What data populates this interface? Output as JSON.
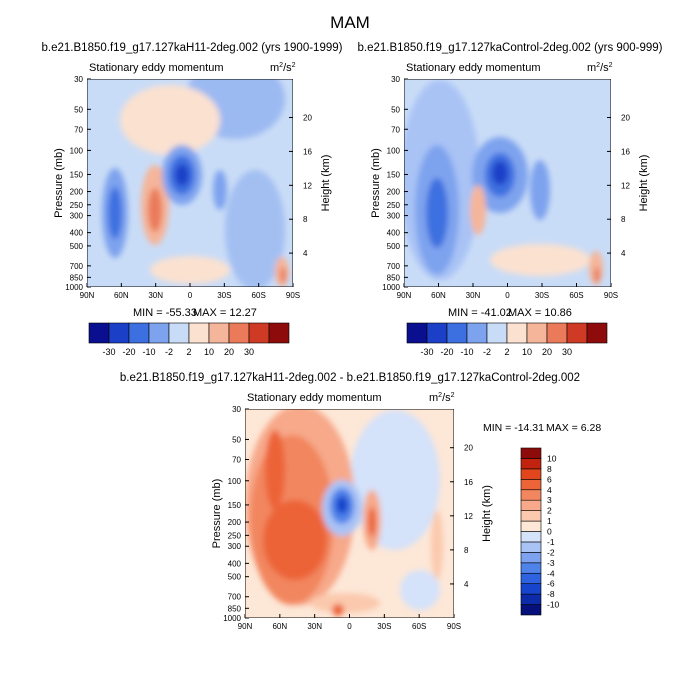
{
  "figure": {
    "title": "MAM"
  },
  "colors": {
    "contour_levels": [
      -30,
      -20,
      -10,
      -2,
      2,
      10,
      20,
      30
    ],
    "top_palette": [
      "#0a0f8f",
      "#1b3fc7",
      "#3c6fe0",
      "#7ea3ee",
      "#c9dcf7",
      "#fbe1d0",
      "#f5b59a",
      "#ea7a5a",
      "#cf3a25",
      "#8e0b0b"
    ],
    "diff_levels": [
      -10,
      -8,
      -6,
      -4,
      -3,
      -2,
      -1,
      0,
      1,
      2,
      3,
      4,
      6,
      8,
      10
    ],
    "diff_palette": [
      "#05107a",
      "#0d2ba8",
      "#1744cc",
      "#2f62e0",
      "#5083ea",
      "#7da3f0",
      "#a9c3f5",
      "#d4e2fa",
      "#fde7d7",
      "#fbc9ad",
      "#f7a98a",
      "#f2865f",
      "#ec6438",
      "#e2461c",
      "#c1230e",
      "#8e0b0b"
    ]
  },
  "chart_data": [
    {
      "type": "heatmap",
      "title": "b.e21.B1850.f19_g17.127kaH11-2deg.002 (yrs 1900-1999)",
      "subtitle_left": "Stationary eddy momentum",
      "units": "m",
      "units_exp": "2",
      "units_tail": "/s",
      "units_tail_exp": "2",
      "ylabel": "Pressure (mb)",
      "ylabel_right": "Height (km)",
      "x_ticks": [
        "90N",
        "60N",
        "30N",
        "0",
        "30S",
        "60S",
        "90S"
      ],
      "y_ticks": [
        "30",
        "50",
        "70",
        "100",
        "150",
        "200",
        "250",
        "300",
        "400",
        "500",
        "700",
        "850",
        "1000"
      ],
      "height_ticks": [
        "20",
        "16",
        "12",
        "8",
        "4"
      ],
      "min_label": "MIN = -55.33",
      "max_label": "MAX =  12.27",
      "features": [
        {
          "lat": 10,
          "p": 150,
          "value": -40
        },
        {
          "lat": -42,
          "p": 60,
          "value": -8
        },
        {
          "lat": 68,
          "p": 230,
          "value": -12
        },
        {
          "lat": -22,
          "p": 170,
          "value": -6
        },
        {
          "lat": 25,
          "p": 280,
          "value": 12
        },
        {
          "lat": -80,
          "p": 850,
          "value": 10
        }
      ]
    },
    {
      "type": "heatmap",
      "title": "b.e21.B1850.f19_g17.127kaControl-2deg.002 (yrs 900-999)",
      "subtitle_left": "Stationary eddy momentum",
      "units": "m",
      "units_exp": "2",
      "units_tail": "/s",
      "units_tail_exp": "2",
      "ylabel": "Pressure (mb)",
      "ylabel_right": "Height (km)",
      "x_ticks": [
        "90N",
        "60N",
        "30N",
        "0",
        "30S",
        "60S",
        "90S"
      ],
      "y_ticks": [
        "30",
        "50",
        "70",
        "100",
        "150",
        "200",
        "250",
        "300",
        "400",
        "500",
        "700",
        "850",
        "1000"
      ],
      "height_ticks": [
        "20",
        "16",
        "12",
        "8",
        "4"
      ],
      "min_label": "MIN = -41.02",
      "max_label": "MAX =  10.86",
      "features": [
        {
          "lat": 10,
          "p": 150,
          "value": -38
        },
        {
          "lat": 65,
          "p": 220,
          "value": -18
        },
        {
          "lat": -25,
          "p": 180,
          "value": -10
        },
        {
          "lat": 27,
          "p": 280,
          "value": 8
        },
        {
          "lat": -82,
          "p": 850,
          "value": 9
        }
      ]
    },
    {
      "type": "heatmap",
      "title": "b.e21.B1850.f19_g17.127kaH11-2deg.002 - b.e21.B1850.f19_g17.127kaControl-2deg.002",
      "subtitle_left": "Stationary eddy momentum",
      "units": "m",
      "units_exp": "2",
      "units_tail": "/s",
      "units_tail_exp": "2",
      "ylabel": "Pressure (mb)",
      "ylabel_right": "Height (km)",
      "x_ticks": [
        "90N",
        "60N",
        "30N",
        "0",
        "30S",
        "60S",
        "90S"
      ],
      "y_ticks": [
        "30",
        "50",
        "70",
        "100",
        "150",
        "200",
        "250",
        "300",
        "400",
        "500",
        "700",
        "850",
        "1000"
      ],
      "height_ticks": [
        "20",
        "16",
        "12",
        "8",
        "4"
      ],
      "min_label": "MIN = -14.31",
      "max_label": "MAX =   6.28",
      "features": [
        {
          "lat": 55,
          "p": 250,
          "value": 5
        },
        {
          "lat": 10,
          "p": 150,
          "value": -8
        },
        {
          "lat": -20,
          "p": 250,
          "value": 3
        },
        {
          "lat": -75,
          "p": 300,
          "value": 1.5
        },
        {
          "lat": -5,
          "p": 950,
          "value": 6
        }
      ]
    }
  ]
}
